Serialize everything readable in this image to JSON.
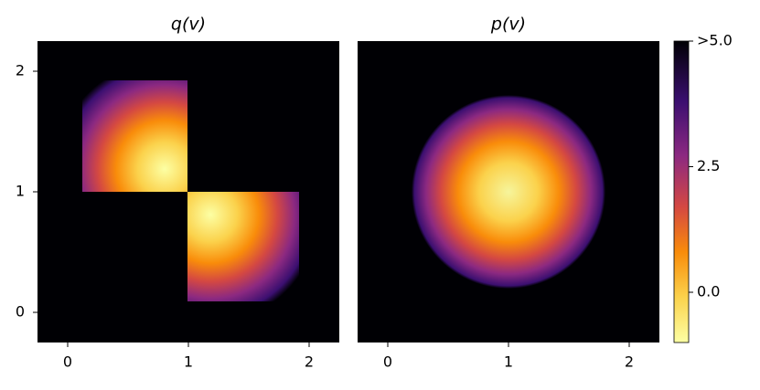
{
  "chart_data": [
    {
      "type": "heatmap",
      "title": "q(v)",
      "xlim": [
        -0.25,
        2.25
      ],
      "ylim": [
        -0.25,
        2.25
      ],
      "xticks": [
        0,
        1,
        2
      ],
      "yticks": [
        0,
        1,
        2
      ]
    },
    {
      "type": "heatmap",
      "title": "p(v)",
      "xlim": [
        -0.25,
        2.25
      ],
      "ylim": [
        -0.25,
        2.25
      ],
      "xticks": [
        0,
        1,
        2
      ],
      "colorbar": {
        "clim": [
          -1,
          5
        ],
        "ticks": [
          {
            "value": 5,
            "label": ">5.0"
          },
          2.5,
          {
            "value": 0,
            "label": "0.0"
          }
        ]
      }
    }
  ]
}
